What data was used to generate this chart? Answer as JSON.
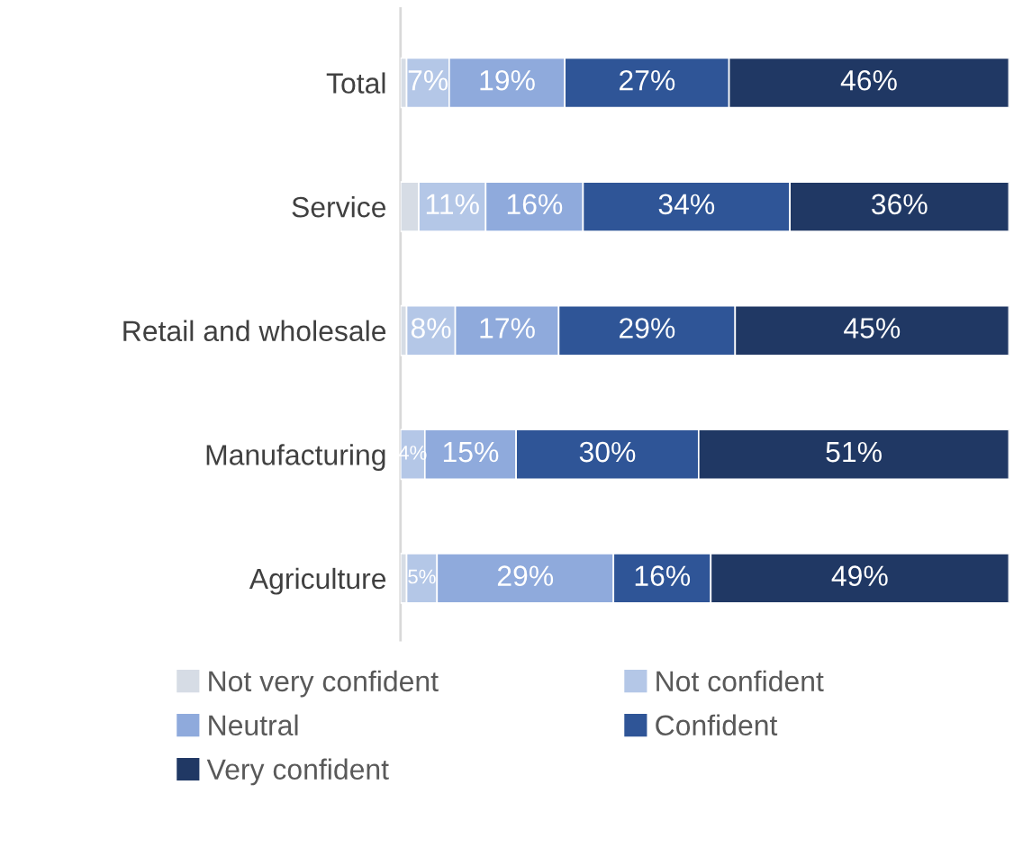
{
  "chart_data": {
    "type": "bar",
    "orientation": "horizontal",
    "stacked": true,
    "categories": [
      "Total",
      "Service",
      "Retail and wholesale",
      "Manufacturing",
      "Agriculture"
    ],
    "xlim": [
      0,
      100
    ],
    "tick_labels": "y",
    "grid": false,
    "legend": "bottom",
    "series": [
      {
        "name": "Not very confident",
        "color": "#d6dce5",
        "values": [
          1,
          3,
          1,
          0,
          1
        ],
        "value_labels": [
          null,
          null,
          null,
          null,
          null
        ]
      },
      {
        "name": "Not confident",
        "color": "#b4c7e7",
        "values": [
          7,
          11,
          8,
          4,
          5
        ],
        "value_labels": [
          "7%",
          "11%",
          "8%",
          "4%",
          "5%"
        ]
      },
      {
        "name": "Neutral",
        "color": "#8faadc",
        "values": [
          19,
          16,
          17,
          15,
          29
        ],
        "value_labels": [
          "19%",
          "16%",
          "17%",
          "15%",
          "29%"
        ]
      },
      {
        "name": "Confident",
        "color": "#2f5597",
        "values": [
          27,
          34,
          29,
          30,
          16
        ],
        "value_labels": [
          "27%",
          "34%",
          "29%",
          "30%",
          "16%"
        ]
      },
      {
        "name": "Very confident",
        "color": "#203864",
        "values": [
          46,
          36,
          45,
          51,
          49
        ],
        "value_labels": [
          "46%",
          "36%",
          "45%",
          "51%",
          "49%"
        ]
      }
    ]
  }
}
